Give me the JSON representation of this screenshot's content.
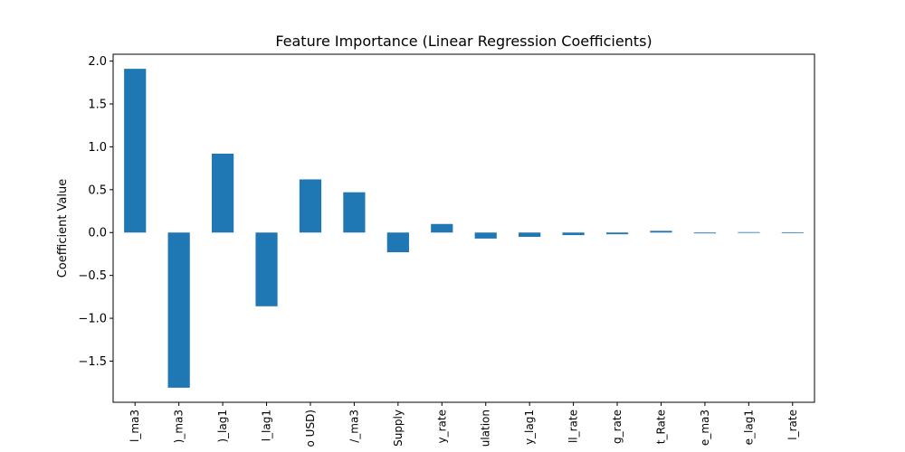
{
  "chart_data": {
    "type": "bar",
    "title": "Feature Importance (Linear Regression Coefficients)",
    "xlabel": "",
    "ylabel": "Coefficient Value",
    "categories": [
      "l_ma3",
      ")_ma3",
      ")_lag1",
      "l_lag1",
      "o USD)",
      "/_ma3",
      "Supply",
      "y_rate",
      "ulation",
      "y_lag1",
      "ll_rate",
      "g_rate",
      "t_Rate",
      "e_ma3",
      "e_lag1",
      "l_rate"
    ],
    "values": [
      1.91,
      -1.81,
      0.92,
      -0.86,
      0.62,
      0.47,
      -0.23,
      0.1,
      -0.07,
      -0.05,
      -0.03,
      -0.02,
      0.02,
      -0.01,
      0.005,
      0.003
    ],
    "ylim": [
      -1.98,
      2.08
    ],
    "yticks": [
      2.0,
      1.5,
      1.0,
      0.5,
      0.0,
      -0.5,
      -1.0,
      -1.5
    ],
    "ytick_labels": [
      "2.0",
      "1.5",
      "1.0",
      "0.5",
      "0.0",
      "−0.5",
      "−1.0",
      "−1.5"
    ],
    "bar_color": "#1f77b4",
    "grid": false,
    "legend": "none"
  }
}
